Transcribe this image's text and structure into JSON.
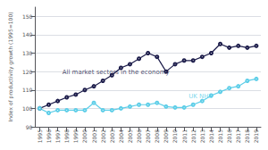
{
  "chart_data": {
    "type": "line",
    "x": [
      1995,
      1996,
      1997,
      1998,
      1999,
      2000,
      2001,
      2002,
      2003,
      2004,
      2005,
      2006,
      2007,
      2008,
      2009,
      2010,
      2011,
      2012,
      2013,
      2014,
      2015,
      2016,
      2017,
      2018,
      2019
    ],
    "series": [
      {
        "color": "#1c1c4a",
        "values": [
          100,
          102,
          104,
          106,
          107.5,
          110,
          112,
          115,
          118,
          122,
          124,
          127,
          130,
          128,
          120,
          124,
          126,
          126,
          128,
          130,
          135,
          133,
          134,
          133,
          134
        ]
      },
      {
        "color": "#5ecee8",
        "values": [
          100,
          97.5,
          99,
          99,
          99,
          99,
          103,
          99,
          99,
          100,
          101,
          102,
          102,
          103,
          101,
          100.5,
          100.5,
          102,
          104,
          107,
          109,
          111,
          112,
          115,
          116
        ]
      }
    ],
    "annotations": [
      {
        "text": "All market sectors in the economy",
        "x": 1997.5,
        "y": 118,
        "color": "#1c1c4a"
      },
      {
        "text": "UK NHS",
        "x": 2011.5,
        "y": 105,
        "color": "#5ecee8"
      }
    ],
    "ylabel": "Index of productivity growth (1995=100)",
    "ylim": [
      90,
      155
    ],
    "yticks": [
      90,
      100,
      110,
      120,
      130,
      140,
      150
    ],
    "xlim": [
      1994.5,
      2019.5
    ],
    "xticks": [
      1995,
      1996,
      1997,
      1998,
      1999,
      2000,
      2001,
      2002,
      2003,
      2004,
      2005,
      2006,
      2007,
      2008,
      2009,
      2010,
      2011,
      2012,
      2013,
      2014,
      2015,
      2016,
      2017,
      2018,
      2019
    ],
    "marker": "circle",
    "grid": true
  }
}
